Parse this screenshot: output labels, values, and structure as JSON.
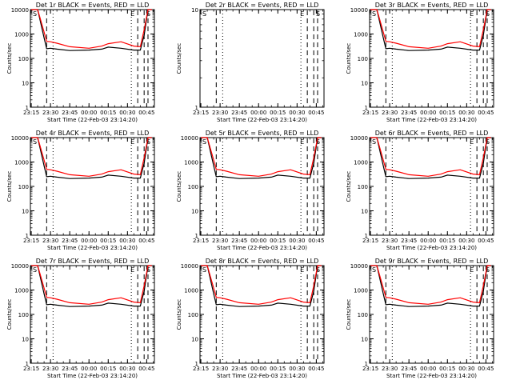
{
  "colors": {
    "events": "#000000",
    "lld": "#ff0000",
    "frame": "#000000"
  },
  "shared": {
    "xlabel": "Start Time (22-Feb-03 23:14:20)",
    "ylabel": "Counts/sec",
    "x_tick_labels": [
      "23:15",
      "23:30",
      "23:45",
      "00:00",
      "00:15",
      "00:30",
      "00:45"
    ],
    "y_tick_labels": [
      "1",
      "10",
      "100",
      "1000",
      "10000"
    ],
    "marker_labels": [
      "S",
      "E",
      "S"
    ]
  },
  "chart_data": [
    {
      "type": "line",
      "title": "Det 1r BLACK = Events, RED = LLD",
      "xlabel": "Start Time (22-Feb-03 23:14:20)",
      "ylabel": "Counts/sec",
      "yscale": "log",
      "ylim": [
        1,
        10000
      ],
      "xlim": [
        "23:14:20",
        "00:51:00"
      ],
      "markers": [
        "S",
        "E",
        "S"
      ],
      "series": [
        {
          "name": "Events",
          "x": [
            "23:15",
            "23:20",
            "23:25",
            "23:27",
            "23:30",
            "23:35",
            "23:45",
            "00:00",
            "00:10",
            "00:15",
            "00:25",
            "00:35",
            "00:40",
            "00:43",
            "00:46",
            "00:49"
          ],
          "values": [
            10000,
            10000,
            700,
            250,
            260,
            240,
            210,
            220,
            240,
            290,
            260,
            220,
            220,
            900,
            10000,
            10000
          ]
        },
        {
          "name": "LLD",
          "x": [
            "23:15",
            "23:20",
            "23:25",
            "23:27",
            "23:30",
            "23:35",
            "23:45",
            "00:00",
            "00:10",
            "00:15",
            "00:25",
            "00:35",
            "00:40",
            "00:43",
            "00:46",
            "00:49"
          ],
          "values": [
            10000,
            10000,
            1200,
            500,
            480,
            420,
            300,
            260,
            320,
            400,
            480,
            320,
            300,
            1500,
            10000,
            10000
          ]
        }
      ]
    },
    {
      "type": "line",
      "title": "Det 2r BLACK = Events, RED = LLD",
      "xlabel": "Start Time (22-Feb-03 23:14:20)",
      "ylabel": "Counts/sec",
      "yscale": "log",
      "ylim": [
        1,
        10
      ],
      "xlim": [
        "23:14:20",
        "00:51:00"
      ],
      "markers": [
        "S",
        "E",
        "S"
      ],
      "series": []
    },
    {
      "type": "line",
      "title": "Det 3r BLACK = Events, RED = LLD",
      "xlabel": "Start Time (22-Feb-03 23:14:20)",
      "ylabel": "Counts/sec",
      "yscale": "log",
      "ylim": [
        1,
        10000
      ],
      "xlim": [
        "23:14:20",
        "00:51:00"
      ],
      "markers": [
        "S",
        "E",
        "S"
      ],
      "series": [
        {
          "name": "Events",
          "x": [
            "23:15",
            "23:20",
            "23:25",
            "23:27",
            "23:30",
            "23:35",
            "23:45",
            "00:00",
            "00:10",
            "00:15",
            "00:25",
            "00:35",
            "00:40",
            "00:43",
            "00:46",
            "00:49"
          ],
          "values": [
            10000,
            10000,
            700,
            250,
            260,
            240,
            210,
            220,
            240,
            290,
            260,
            220,
            220,
            900,
            10000,
            10000
          ]
        },
        {
          "name": "LLD",
          "x": [
            "23:15",
            "23:20",
            "23:25",
            "23:27",
            "23:30",
            "23:35",
            "23:45",
            "00:00",
            "00:10",
            "00:15",
            "00:25",
            "00:35",
            "00:40",
            "00:43",
            "00:46",
            "00:49"
          ],
          "values": [
            10000,
            10000,
            1200,
            500,
            480,
            420,
            300,
            260,
            320,
            400,
            480,
            320,
            300,
            1500,
            10000,
            10000
          ]
        }
      ]
    },
    {
      "type": "line",
      "title": "Det 4r BLACK = Events, RED = LLD",
      "xlabel": "Start Time (22-Feb-03 23:14:20)",
      "ylabel": "Counts/sec",
      "yscale": "log",
      "ylim": [
        1,
        10000
      ],
      "xlim": [
        "23:14:20",
        "00:51:00"
      ],
      "markers": [
        "S",
        "E",
        "S"
      ],
      "series": [
        {
          "name": "Events",
          "x": [
            "23:15",
            "23:20",
            "23:25",
            "23:27",
            "23:30",
            "23:35",
            "23:45",
            "00:00",
            "00:10",
            "00:15",
            "00:25",
            "00:35",
            "00:40",
            "00:43",
            "00:46",
            "00:49"
          ],
          "values": [
            10000,
            10000,
            700,
            250,
            260,
            240,
            210,
            220,
            240,
            290,
            260,
            220,
            220,
            900,
            10000,
            10000
          ]
        },
        {
          "name": "LLD",
          "x": [
            "23:15",
            "23:20",
            "23:25",
            "23:27",
            "23:30",
            "23:35",
            "23:45",
            "00:00",
            "00:10",
            "00:15",
            "00:25",
            "00:35",
            "00:40",
            "00:43",
            "00:46",
            "00:49"
          ],
          "values": [
            10000,
            10000,
            1200,
            500,
            480,
            420,
            300,
            260,
            320,
            400,
            480,
            320,
            300,
            1500,
            10000,
            10000
          ]
        }
      ]
    },
    {
      "type": "line",
      "title": "Det 5r BLACK = Events, RED = LLD",
      "xlabel": "Start Time (22-Feb-03 23:14:20)",
      "ylabel": "Counts/sec",
      "yscale": "log",
      "ylim": [
        1,
        10000
      ],
      "xlim": [
        "23:14:20",
        "00:51:00"
      ],
      "markers": [
        "S",
        "E",
        "S"
      ],
      "series": [
        {
          "name": "Events",
          "x": [
            "23:15",
            "23:20",
            "23:25",
            "23:27",
            "23:30",
            "23:35",
            "23:45",
            "00:00",
            "00:10",
            "00:15",
            "00:25",
            "00:35",
            "00:40",
            "00:43",
            "00:46",
            "00:49"
          ],
          "values": [
            10000,
            10000,
            700,
            250,
            260,
            240,
            210,
            220,
            240,
            290,
            260,
            220,
            220,
            900,
            10000,
            10000
          ]
        },
        {
          "name": "LLD",
          "x": [
            "23:15",
            "23:20",
            "23:25",
            "23:27",
            "23:30",
            "23:35",
            "23:45",
            "00:00",
            "00:10",
            "00:15",
            "00:25",
            "00:35",
            "00:40",
            "00:43",
            "00:46",
            "00:49"
          ],
          "values": [
            10000,
            10000,
            1200,
            500,
            480,
            420,
            300,
            260,
            320,
            400,
            480,
            320,
            300,
            1500,
            10000,
            10000
          ]
        }
      ]
    },
    {
      "type": "line",
      "title": "Det 6r BLACK = Events, RED = LLD",
      "xlabel": "Start Time (22-Feb-03 23:14:20)",
      "ylabel": "Counts/sec",
      "yscale": "log",
      "ylim": [
        1,
        10000
      ],
      "xlim": [
        "23:14:20",
        "00:51:00"
      ],
      "markers": [
        "S",
        "E",
        "S"
      ],
      "series": [
        {
          "name": "Events",
          "x": [
            "23:15",
            "23:20",
            "23:25",
            "23:27",
            "23:30",
            "23:35",
            "23:45",
            "00:00",
            "00:10",
            "00:15",
            "00:25",
            "00:35",
            "00:40",
            "00:43",
            "00:46",
            "00:49"
          ],
          "values": [
            10000,
            10000,
            700,
            250,
            260,
            240,
            210,
            220,
            240,
            290,
            260,
            220,
            220,
            900,
            10000,
            10000
          ]
        },
        {
          "name": "LLD",
          "x": [
            "23:15",
            "23:20",
            "23:25",
            "23:27",
            "23:30",
            "23:35",
            "23:45",
            "00:00",
            "00:10",
            "00:15",
            "00:25",
            "00:35",
            "00:40",
            "00:43",
            "00:46",
            "00:49"
          ],
          "values": [
            10000,
            10000,
            1200,
            500,
            480,
            420,
            300,
            260,
            320,
            400,
            480,
            320,
            300,
            1500,
            10000,
            10000
          ]
        }
      ]
    },
    {
      "type": "line",
      "title": "Det 7r BLACK = Events, RED = LLD",
      "xlabel": "Start Time (22-Feb-03 23:14:20)",
      "ylabel": "Counts/sec",
      "yscale": "log",
      "ylim": [
        1,
        10000
      ],
      "xlim": [
        "23:14:20",
        "00:51:00"
      ],
      "markers": [
        "S",
        "E",
        "S"
      ],
      "series": [
        {
          "name": "Events",
          "x": [
            "23:15",
            "23:20",
            "23:25",
            "23:27",
            "23:30",
            "23:35",
            "23:45",
            "00:00",
            "00:10",
            "00:15",
            "00:25",
            "00:35",
            "00:40",
            "00:43",
            "00:46",
            "00:49"
          ],
          "values": [
            10000,
            10000,
            700,
            250,
            260,
            240,
            210,
            220,
            240,
            290,
            260,
            220,
            220,
            900,
            10000,
            10000
          ]
        },
        {
          "name": "LLD",
          "x": [
            "23:15",
            "23:20",
            "23:25",
            "23:27",
            "23:30",
            "23:35",
            "23:45",
            "00:00",
            "00:10",
            "00:15",
            "00:25",
            "00:35",
            "00:40",
            "00:43",
            "00:46",
            "00:49"
          ],
          "values": [
            10000,
            10000,
            1200,
            500,
            480,
            420,
            300,
            260,
            320,
            400,
            480,
            320,
            300,
            1500,
            10000,
            10000
          ]
        }
      ]
    },
    {
      "type": "line",
      "title": "Det 8r BLACK = Events, RED = LLD",
      "xlabel": "Start Time (22-Feb-03 23:14:20)",
      "ylabel": "Counts/sec",
      "yscale": "log",
      "ylim": [
        1,
        10000
      ],
      "xlim": [
        "23:14:20",
        "00:51:00"
      ],
      "markers": [
        "S",
        "E",
        "S"
      ],
      "series": [
        {
          "name": "Events",
          "x": [
            "23:15",
            "23:20",
            "23:25",
            "23:27",
            "23:30",
            "23:35",
            "23:45",
            "00:00",
            "00:10",
            "00:15",
            "00:25",
            "00:35",
            "00:40",
            "00:43",
            "00:46",
            "00:49"
          ],
          "values": [
            10000,
            10000,
            700,
            250,
            260,
            240,
            210,
            220,
            240,
            290,
            260,
            220,
            220,
            900,
            10000,
            10000
          ]
        },
        {
          "name": "LLD",
          "x": [
            "23:15",
            "23:20",
            "23:25",
            "23:27",
            "23:30",
            "23:35",
            "23:45",
            "00:00",
            "00:10",
            "00:15",
            "00:25",
            "00:35",
            "00:40",
            "00:43",
            "00:46",
            "00:49"
          ],
          "values": [
            10000,
            10000,
            1200,
            500,
            480,
            420,
            300,
            260,
            320,
            400,
            480,
            320,
            300,
            1500,
            10000,
            10000
          ]
        }
      ]
    },
    {
      "type": "line",
      "title": "Det 9r BLACK = Events, RED = LLD",
      "xlabel": "Start Time (22-Feb-03 23:14:20)",
      "ylabel": "Counts/sec",
      "yscale": "log",
      "ylim": [
        1,
        10000
      ],
      "xlim": [
        "23:14:20",
        "00:51:00"
      ],
      "markers": [
        "S",
        "E",
        "S"
      ],
      "series": [
        {
          "name": "Events",
          "x": [
            "23:15",
            "23:20",
            "23:25",
            "23:27",
            "23:30",
            "23:35",
            "23:45",
            "00:00",
            "00:10",
            "00:15",
            "00:25",
            "00:35",
            "00:40",
            "00:43",
            "00:46",
            "00:49"
          ],
          "values": [
            10000,
            10000,
            700,
            250,
            260,
            240,
            210,
            220,
            240,
            290,
            260,
            220,
            220,
            900,
            10000,
            10000
          ]
        },
        {
          "name": "LLD",
          "x": [
            "23:15",
            "23:20",
            "23:25",
            "23:27",
            "23:30",
            "23:35",
            "23:45",
            "00:00",
            "00:10",
            "00:15",
            "00:25",
            "00:35",
            "00:40",
            "00:43",
            "00:46",
            "00:49"
          ],
          "values": [
            10000,
            10000,
            1200,
            500,
            480,
            420,
            300,
            260,
            320,
            400,
            480,
            320,
            300,
            1500,
            10000,
            10000
          ]
        }
      ]
    }
  ]
}
